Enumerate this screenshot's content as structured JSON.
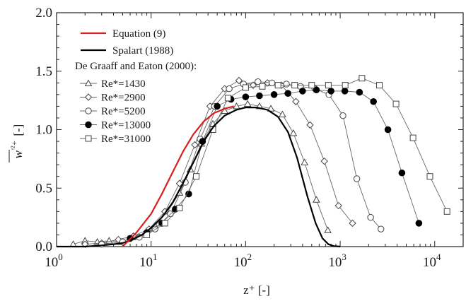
{
  "chart_data": {
    "type": "line",
    "x_scale": "log",
    "xlim": [
      1,
      20000
    ],
    "ylim": [
      0,
      2.0
    ],
    "x_ticks": [
      {
        "base": "10",
        "exp": "0"
      },
      {
        "base": "10",
        "exp": "1"
      },
      {
        "base": "10",
        "exp": "2"
      },
      {
        "base": "10",
        "exp": "3"
      },
      {
        "base": "10",
        "exp": "4"
      }
    ],
    "y_ticks": [
      "0.0",
      "0.5",
      "1.0",
      "1.5",
      "2.0"
    ],
    "xlabel": "z⁺ [-]",
    "ylabel": {
      "w": "w",
      "sup": "′²+",
      "unit": "[-]"
    },
    "legend": {
      "equation": "Equation (9)",
      "spalart": "Spalart (1988)",
      "group_title": "De Graaff and Eaton (2000):",
      "placement": "top-left"
    },
    "colors": {
      "equation": "#d62020",
      "spalart": "#000000",
      "markers": "#555555"
    },
    "series": [
      {
        "name": "Equation (9)",
        "kind": "line",
        "color": "#d62020",
        "x": [
          5,
          7,
          10,
          13,
          17,
          22,
          28,
          36,
          46,
          60,
          75
        ],
        "y": [
          0.0,
          0.12,
          0.28,
          0.45,
          0.64,
          0.82,
          0.96,
          1.07,
          1.14,
          1.18,
          1.2
        ]
      },
      {
        "name": "Spalart (1988)",
        "kind": "line",
        "color": "#000000",
        "x": [
          1,
          2,
          3,
          4,
          5,
          6,
          8,
          10,
          13,
          17,
          22,
          28,
          36,
          46,
          60,
          80,
          100,
          130,
          170,
          220,
          280,
          350,
          450,
          550,
          650,
          750,
          850,
          1000
        ],
        "y": [
          0.0,
          0.0,
          0.01,
          0.02,
          0.03,
          0.05,
          0.1,
          0.16,
          0.25,
          0.38,
          0.55,
          0.72,
          0.9,
          1.03,
          1.12,
          1.17,
          1.19,
          1.19,
          1.17,
          1.11,
          0.98,
          0.76,
          0.43,
          0.2,
          0.07,
          0.02,
          0.005,
          0.0
        ]
      },
      {
        "name": "Re*=1430",
        "kind": "markers",
        "marker": "triangle",
        "x": [
          1.5,
          2,
          2.7,
          3.6,
          4.8,
          6.4,
          8.5,
          11,
          15,
          20,
          26,
          34,
          45,
          60,
          80,
          105,
          140,
          185,
          245,
          320,
          420,
          560,
          740
        ],
        "y": [
          0.02,
          0.05,
          0.04,
          0.05,
          0.04,
          0.08,
          0.1,
          0.18,
          0.3,
          0.46,
          0.66,
          0.88,
          1.05,
          1.16,
          1.2,
          1.22,
          1.2,
          1.18,
          1.13,
          0.97,
          0.72,
          0.4,
          0.14
        ]
      },
      {
        "name": "Re*=2900",
        "kind": "markers",
        "marker": "diamond",
        "x": [
          2,
          3,
          4.5,
          6.5,
          9.5,
          14,
          20,
          29,
          42,
          60,
          85,
          120,
          170,
          240,
          340,
          480,
          680,
          960,
          1350
        ],
        "y": [
          0.02,
          0.03,
          0.06,
          0.09,
          0.15,
          0.3,
          0.54,
          0.87,
          1.2,
          1.35,
          1.42,
          1.38,
          1.4,
          1.38,
          1.24,
          1.04,
          0.73,
          0.35,
          0.2
        ]
      },
      {
        "name": "Re*=5200",
        "kind": "markers",
        "marker": "circle-open",
        "x": [
          3,
          5,
          7.5,
          11,
          16,
          23,
          33,
          47,
          67,
          95,
          135,
          190,
          270,
          380,
          540,
          760,
          1070,
          1500,
          2100,
          2700
        ],
        "y": [
          0.02,
          0.04,
          0.08,
          0.15,
          0.28,
          0.55,
          0.92,
          1.2,
          1.35,
          1.39,
          1.41,
          1.4,
          1.39,
          1.37,
          1.35,
          1.3,
          1.12,
          0.58,
          0.25,
          0.15
        ]
      },
      {
        "name": "Re*=13000",
        "kind": "markers",
        "marker": "circle-filled",
        "x": [
          6,
          9,
          13,
          18,
          25,
          35,
          50,
          70,
          100,
          140,
          200,
          280,
          400,
          560,
          800,
          1120,
          1600,
          2250,
          3200,
          4500,
          6800
        ],
        "y": [
          0.07,
          0.12,
          0.2,
          0.32,
          0.45,
          0.9,
          1.2,
          1.26,
          1.28,
          1.29,
          1.3,
          1.31,
          1.33,
          1.34,
          1.33,
          1.33,
          1.32,
          1.24,
          1.0,
          0.63,
          0.2
        ]
      },
      {
        "name": "Re*=31000",
        "kind": "markers",
        "marker": "square-open",
        "x": [
          9,
          14,
          20,
          30,
          45,
          65,
          100,
          150,
          220,
          330,
          500,
          750,
          1130,
          1700,
          2600,
          3900,
          5900,
          8900,
          13500
        ],
        "y": [
          0.1,
          0.2,
          0.33,
          0.6,
          1.0,
          1.27,
          1.36,
          1.37,
          1.38,
          1.38,
          1.38,
          1.38,
          1.38,
          1.44,
          1.38,
          1.22,
          0.93,
          0.6,
          0.3
        ]
      }
    ]
  }
}
